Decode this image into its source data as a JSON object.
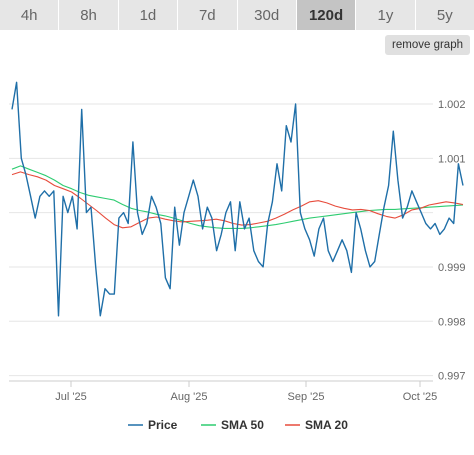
{
  "tabs": [
    {
      "label": "4h",
      "active": false
    },
    {
      "label": "8h",
      "active": false
    },
    {
      "label": "1d",
      "active": false
    },
    {
      "label": "7d",
      "active": false
    },
    {
      "label": "30d",
      "active": false
    },
    {
      "label": "120d",
      "active": true
    },
    {
      "label": "1y",
      "active": false
    },
    {
      "label": "5y",
      "active": false
    }
  ],
  "remove_graph_label": "remove graph",
  "chart_data": {
    "type": "line",
    "x_ticks": [
      "Jul '25",
      "Aug '25",
      "Sep '25",
      "Oct '25"
    ],
    "y_ticks": [
      "1.002",
      "1.001",
      "0.999",
      "0.998",
      "0.997"
    ],
    "ylim": [
      0.9969,
      1.0027
    ],
    "grid": true,
    "legend_position": "bottom",
    "series": [
      {
        "name": "Price",
        "color": "#1f6fa8",
        "values": [
          1.0019,
          1.0024,
          1.001,
          1.0007,
          1.0003,
          0.9999,
          1.0003,
          1.0004,
          1.0003,
          1.0004,
          0.9981,
          1.0003,
          1.0,
          1.0003,
          0.9997,
          1.0019,
          1.0,
          1.0001,
          0.999,
          0.9981,
          0.9986,
          0.9985,
          0.9985,
          0.9999,
          1.0,
          0.9998,
          1.0013,
          1.0,
          0.9996,
          0.9998,
          1.0003,
          1.0001,
          0.9998,
          0.9988,
          0.9986,
          1.0001,
          0.9994,
          1.0,
          1.0003,
          1.0006,
          1.0003,
          0.9997,
          1.0001,
          0.9999,
          0.9993,
          0.9996,
          1.0,
          1.0002,
          0.9993,
          1.0002,
          0.9997,
          0.9999,
          0.9993,
          0.9991,
          0.999,
          0.9998,
          1.0002,
          1.0009,
          1.0004,
          1.0016,
          1.0013,
          1.002,
          1.0,
          0.9997,
          0.9995,
          0.9992,
          0.9997,
          0.9999,
          0.9993,
          0.9991,
          0.9993,
          0.9995,
          0.9993,
          0.9989,
          1.0,
          0.9997,
          0.9993,
          0.999,
          0.9991,
          0.9996,
          1.0001,
          1.0005,
          1.0015,
          1.0006,
          0.9999,
          1.0001,
          1.0004,
          1.0002,
          1.0,
          0.9998,
          0.9997,
          0.9998,
          0.9996,
          0.9997,
          0.9999,
          0.9998,
          1.0009,
          1.0005
        ]
      },
      {
        "name": "SMA 50",
        "color": "#2ecc71",
        "values": [
          1.0008,
          1.00086,
          1.0008,
          1.00074,
          1.00068,
          1.0006,
          1.0005,
          1.00044,
          1.00037,
          1.00032,
          1.00029,
          1.00026,
          1.00023,
          1.00015,
          1.00008,
          1.00004,
          1.00001,
          0.99997,
          0.99994,
          0.9999,
          0.99985,
          0.9998,
          0.99976,
          0.99974,
          0.99972,
          0.99971,
          0.99971,
          0.99971,
          0.99972,
          0.99974,
          0.99976,
          0.99978,
          0.99981,
          0.99984,
          0.99987,
          0.9999,
          0.99992,
          0.99994,
          0.99996,
          0.99998,
          1.0,
          1.00002,
          1.00004,
          1.00005,
          1.00006,
          1.00006,
          1.00007,
          1.00008,
          1.00009,
          1.0001,
          1.00011,
          1.00012,
          1.00013,
          1.00014
        ]
      },
      {
        "name": "SMA 20",
        "color": "#e74c3c",
        "values": [
          1.0007,
          1.00075,
          1.0007,
          1.00066,
          1.0006,
          1.0005,
          1.00044,
          1.00038,
          1.00027,
          1.00015,
          1.00003,
          0.9999,
          0.99978,
          0.99972,
          0.99974,
          0.99982,
          0.9999,
          0.99992,
          0.99988,
          0.99985,
          0.99983,
          0.99984,
          0.99985,
          0.99986,
          0.99988,
          0.99985,
          0.9998,
          0.99977,
          0.99978,
          0.99981,
          0.99984,
          0.9999,
          0.99997,
          1.00005,
          1.00012,
          1.0002,
          1.00022,
          1.00018,
          1.00012,
          1.00008,
          1.00005,
          1.00006,
          1.00004,
          0.99998,
          0.99993,
          0.9999,
          0.99996,
          1.00005,
          1.00008,
          1.00014,
          1.00017,
          1.0002,
          1.00018,
          1.00015
        ]
      }
    ]
  }
}
